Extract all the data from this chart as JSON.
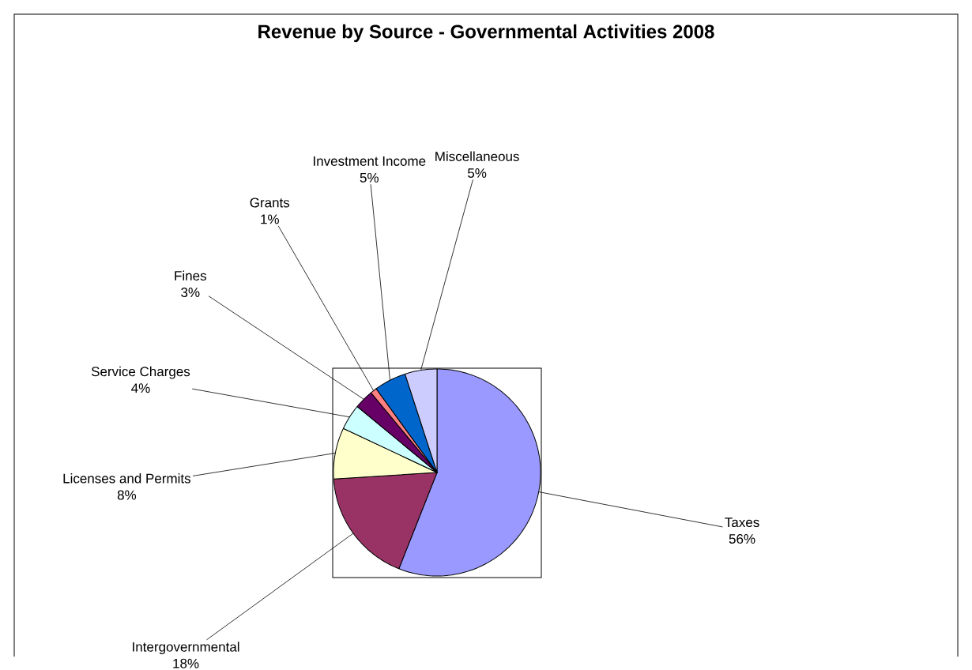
{
  "chart_data": {
    "type": "pie",
    "title": "Revenue by Source - Governmental Activities 2008",
    "categories": [
      "Taxes",
      "Intergovernmental",
      "Licenses and Permits",
      "Service Charges",
      "Fines",
      "Grants",
      "Investment Income",
      "Miscellaneous"
    ],
    "values": [
      56,
      18,
      8,
      4,
      3,
      1,
      5,
      5
    ],
    "colors": [
      "#9999ff",
      "#993366",
      "#ffffcc",
      "#ccffff",
      "#660066",
      "#ff8080",
      "#0066cc",
      "#ccccff"
    ],
    "value_labels": [
      "56%",
      "18%",
      "8%",
      "4%",
      "3%",
      "1%",
      "5%",
      "5%"
    ]
  }
}
